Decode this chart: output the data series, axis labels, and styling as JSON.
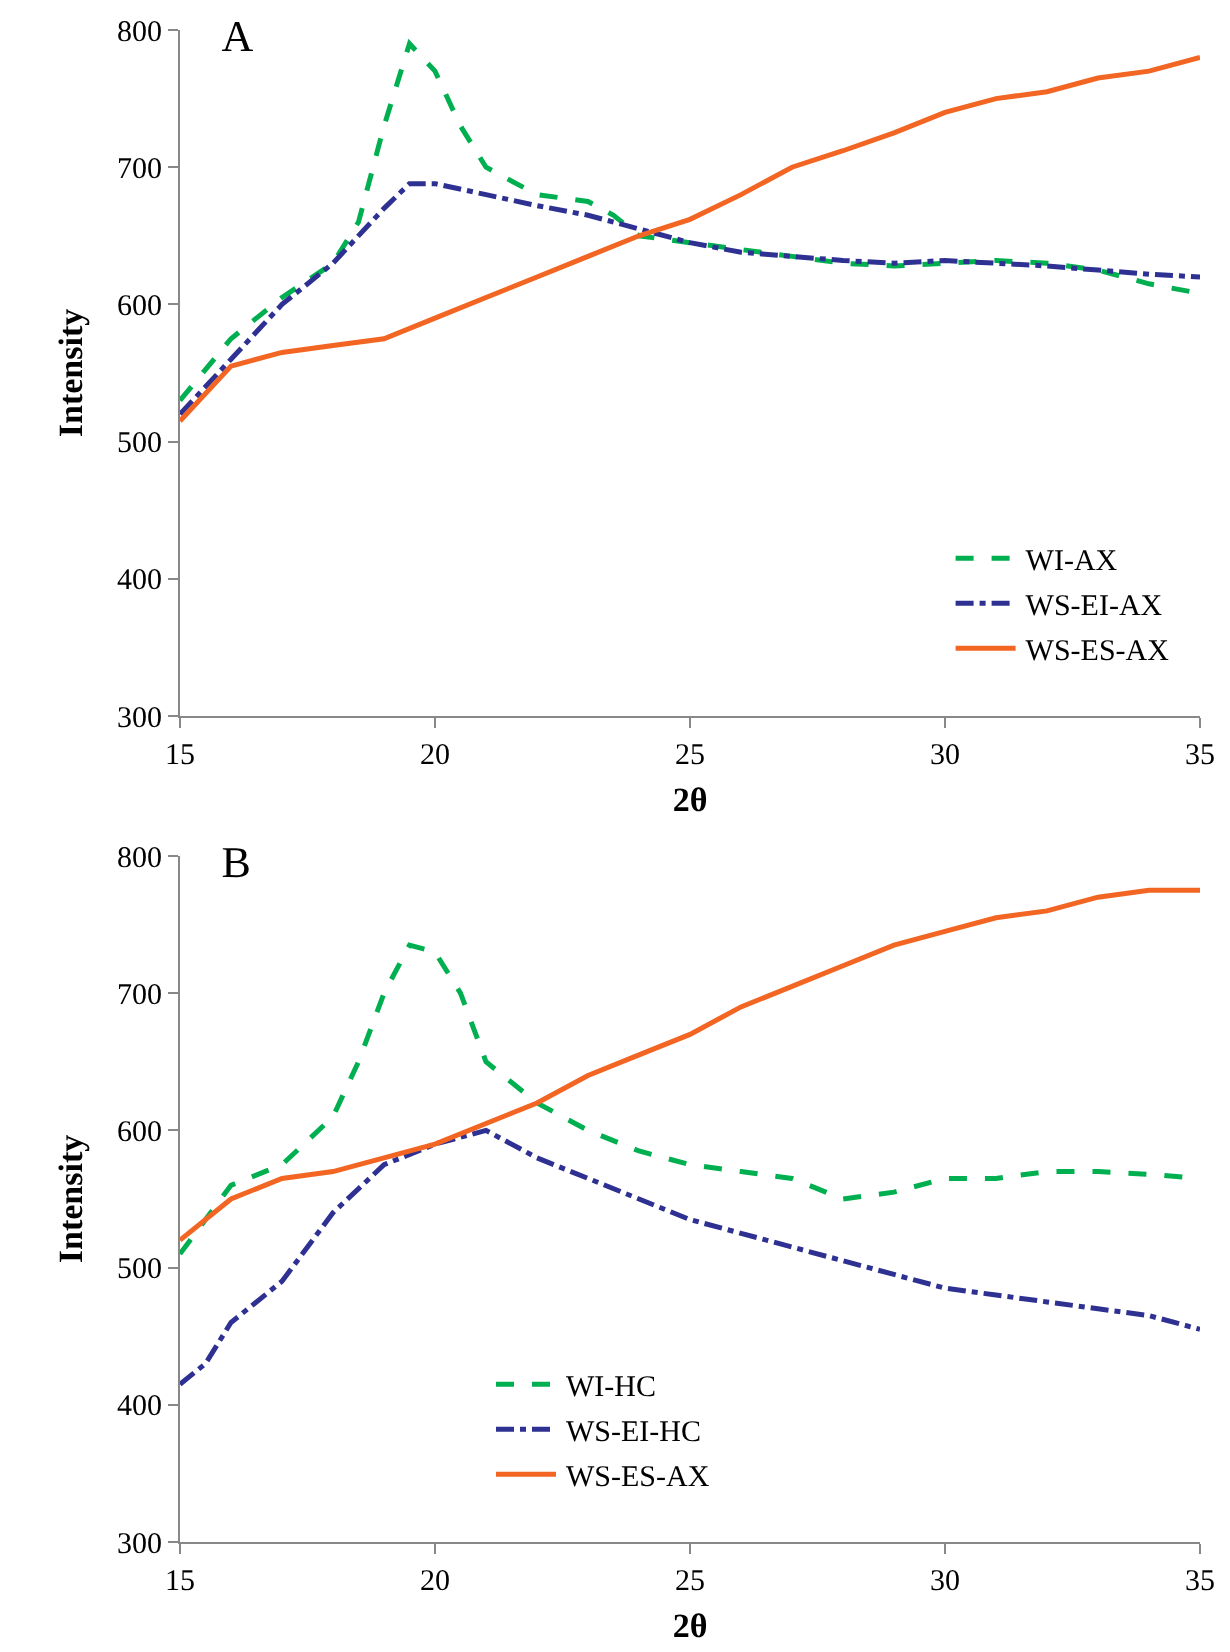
{
  "chart_data": [
    {
      "type": "line",
      "title": "A",
      "xlabel": "2θ",
      "ylabel": "Intensity",
      "xlim": [
        15,
        35
      ],
      "xticks": [
        15,
        20,
        25,
        30,
        35
      ],
      "ylim": [
        300,
        800
      ],
      "yticks": [
        300,
        400,
        500,
        600,
        700,
        800
      ],
      "grid": false,
      "legend": "bottom right",
      "marker": "none",
      "series": [
        {
          "name": "WI-AX",
          "color": "#00b050",
          "line_style": "dashed",
          "x": [
            15,
            16,
            17,
            18,
            18.5,
            19,
            19.5,
            20,
            20.5,
            21,
            22,
            23,
            23.5,
            24,
            25,
            26,
            27,
            28,
            29,
            30,
            31,
            32,
            33,
            34,
            35
          ],
          "values": [
            530,
            575,
            605,
            630,
            660,
            730,
            790,
            770,
            730,
            700,
            680,
            675,
            665,
            650,
            645,
            640,
            635,
            630,
            628,
            630,
            632,
            630,
            625,
            615,
            608
          ]
        },
        {
          "name": "WS-EI-AX",
          "color": "#2e3192",
          "line_style": "dashdot",
          "x": [
            15,
            16,
            17,
            18,
            19,
            19.5,
            20,
            21,
            22,
            23,
            24,
            25,
            26,
            27,
            28,
            29,
            30,
            31,
            32,
            33,
            34,
            35
          ],
          "values": [
            520,
            560,
            600,
            630,
            670,
            688,
            688,
            680,
            672,
            665,
            655,
            645,
            638,
            635,
            632,
            630,
            632,
            630,
            628,
            625,
            622,
            620
          ]
        },
        {
          "name": "WS-ES-AX",
          "color": "#f26522",
          "line_style": "solid",
          "x": [
            15,
            16,
            17,
            18,
            19,
            20,
            21,
            22,
            23,
            24,
            25,
            26,
            27,
            28,
            29,
            30,
            31,
            32,
            33,
            34,
            35
          ],
          "values": [
            515,
            555,
            565,
            570,
            575,
            590,
            605,
            620,
            635,
            650,
            662,
            680,
            700,
            712,
            725,
            740,
            750,
            755,
            765,
            770,
            780
          ]
        }
      ]
    },
    {
      "type": "line",
      "title": "B",
      "xlabel": "2θ",
      "ylabel": "Intensity",
      "xlim": [
        15,
        35
      ],
      "xticks": [
        15,
        20,
        25,
        30,
        35
      ],
      "ylim": [
        300,
        800
      ],
      "yticks": [
        300,
        400,
        500,
        600,
        700,
        800
      ],
      "grid": false,
      "legend": "bottom left",
      "marker": "none",
      "series": [
        {
          "name": "WI-HC",
          "color": "#00b050",
          "line_style": "dashed",
          "x": [
            15,
            16,
            17,
            18,
            18.5,
            19,
            19.5,
            20,
            20.5,
            21,
            22,
            23,
            24,
            25,
            26,
            27,
            28,
            29,
            30,
            31,
            32,
            33,
            34,
            35
          ],
          "values": [
            510,
            560,
            575,
            610,
            650,
            700,
            735,
            730,
            700,
            650,
            620,
            600,
            585,
            575,
            570,
            565,
            550,
            555,
            565,
            565,
            570,
            570,
            568,
            565
          ]
        },
        {
          "name": "WS-EI-HC",
          "color": "#2e3192",
          "line_style": "dashdot",
          "x": [
            15,
            15.5,
            16,
            17,
            18,
            19,
            20,
            21,
            22,
            23,
            24,
            25,
            26,
            27,
            28,
            29,
            30,
            31,
            32,
            33,
            34,
            35
          ],
          "values": [
            415,
            430,
            460,
            490,
            540,
            575,
            590,
            600,
            580,
            565,
            550,
            535,
            525,
            515,
            505,
            495,
            485,
            480,
            475,
            470,
            465,
            455
          ]
        },
        {
          "name": "WS-ES-AX",
          "color": "#f26522",
          "line_style": "solid",
          "x": [
            15,
            16,
            17,
            18,
            19,
            20,
            21,
            22,
            23,
            24,
            25,
            26,
            27,
            28,
            29,
            30,
            31,
            32,
            33,
            34,
            35
          ],
          "values": [
            520,
            550,
            565,
            570,
            580,
            590,
            605,
            620,
            640,
            655,
            670,
            690,
            705,
            720,
            735,
            745,
            755,
            760,
            770,
            775,
            775
          ]
        }
      ]
    }
  ]
}
